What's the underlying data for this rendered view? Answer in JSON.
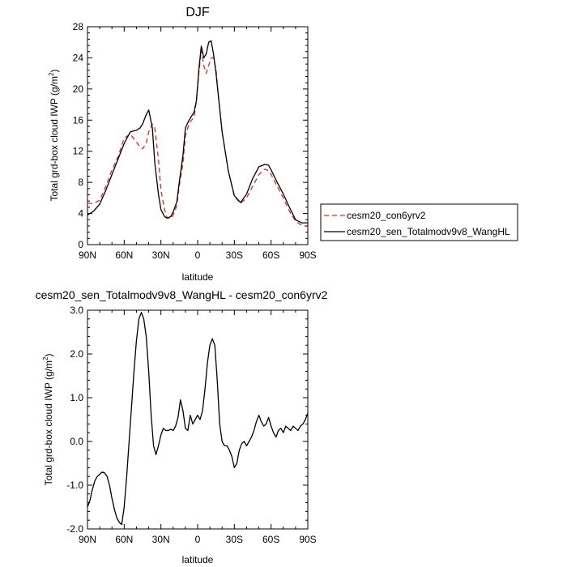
{
  "chart_data": [
    {
      "type": "line",
      "title": "DJF",
      "xlabel": "latitude",
      "ylabel": "Total grd-box cloud IWP (g/m",
      "ylabel_sup": "2",
      "ylabel_close": ")",
      "xlim": [
        90,
        -90
      ],
      "ylim": [
        0,
        28
      ],
      "xticks": [
        90,
        60,
        30,
        0,
        -30,
        -60,
        -90
      ],
      "xtick_labels": [
        "90N",
        "60N",
        "30N",
        "0",
        "30S",
        "60S",
        "90S"
      ],
      "yticks": [
        0,
        4,
        8,
        12,
        16,
        20,
        24,
        28
      ],
      "ytick_labels": [
        "0",
        "4",
        "8",
        "12",
        "16",
        "20",
        "24",
        "28"
      ],
      "legend_position": "right",
      "series": [
        {
          "name": "cesm20_con6yrv2",
          "color": "#e8262a",
          "dash": "dashed",
          "x": [
            90,
            85,
            80,
            75,
            70,
            65,
            60,
            55,
            50,
            47,
            45,
            42,
            40,
            37,
            35,
            32,
            30,
            27,
            25,
            22,
            20,
            17,
            15,
            12,
            10,
            7,
            5,
            3,
            1,
            -1,
            -3,
            -5,
            -7,
            -9,
            -11,
            -13,
            -15,
            -17,
            -20,
            -25,
            -30,
            -35,
            -40,
            -45,
            -50,
            -55,
            -58,
            -60,
            -65,
            -70,
            -75,
            -80,
            -85,
            -90
          ],
          "y": [
            5.3,
            5.3,
            5.7,
            7.5,
            9.6,
            11.3,
            13.7,
            14.2,
            13.2,
            12.5,
            12.3,
            13.0,
            14.5,
            15.5,
            15.0,
            11.0,
            7.0,
            4.5,
            3.5,
            3.3,
            3.8,
            5.0,
            7.5,
            10.5,
            14.0,
            15.5,
            16.0,
            16.3,
            18.5,
            22.0,
            25.0,
            23.0,
            22.0,
            23.0,
            24.0,
            24.0,
            22.5,
            19.0,
            14.5,
            9.5,
            6.2,
            5.3,
            6.0,
            7.5,
            9.0,
            9.7,
            9.5,
            9.0,
            7.5,
            6.0,
            4.3,
            3.0,
            2.5,
            2.3
          ]
        },
        {
          "name": "cesm20_sen_Totalmodv9v8_WangHL",
          "color": "#000000",
          "dash": "solid",
          "x": [
            90,
            85,
            80,
            75,
            70,
            65,
            60,
            55,
            50,
            47,
            45,
            42,
            40,
            37,
            35,
            32,
            30,
            27,
            25,
            22,
            20,
            17,
            15,
            12,
            10,
            7,
            5,
            3,
            1,
            -1,
            -3,
            -5,
            -7,
            -9,
            -11,
            -13,
            -15,
            -17,
            -20,
            -25,
            -30,
            -35,
            -40,
            -45,
            -50,
            -55,
            -58,
            -60,
            -65,
            -70,
            -75,
            -80,
            -85,
            -90
          ],
          "y": [
            3.8,
            4.3,
            5.2,
            7.0,
            9.0,
            11.0,
            13.0,
            14.5,
            14.7,
            15.0,
            15.5,
            16.7,
            17.3,
            15.0,
            10.5,
            6.5,
            4.5,
            3.6,
            3.4,
            3.6,
            4.2,
            5.5,
            8.0,
            11.5,
            15.0,
            16.0,
            16.5,
            17.0,
            18.5,
            22.5,
            25.5,
            24.0,
            24.5,
            26.0,
            26.2,
            24.5,
            22.0,
            19.0,
            14.5,
            9.5,
            6.3,
            5.4,
            6.5,
            8.5,
            10.0,
            10.3,
            10.2,
            9.6,
            8.0,
            6.5,
            4.8,
            3.2,
            2.8,
            2.8
          ]
        }
      ]
    },
    {
      "type": "line",
      "title": "cesm20_sen_Totalmodv9v8_WangHL - cesm20_con6yrv2",
      "xlabel": "latitude",
      "ylabel": "Total grd-box cloud IWP (g/m",
      "ylabel_sup": "2",
      "ylabel_close": ")",
      "xlim": [
        90,
        -90
      ],
      "ylim": [
        -2.0,
        3.0
      ],
      "xticks": [
        90,
        60,
        30,
        0,
        -30,
        -60,
        -90
      ],
      "xtick_labels": [
        "90N",
        "60N",
        "30N",
        "0",
        "30S",
        "60S",
        "90S"
      ],
      "yticks": [
        -2.0,
        -1.0,
        0.0,
        1.0,
        2.0,
        3.0
      ],
      "ytick_labels": [
        "-2.0",
        "-1.0",
        "0.0",
        "1.0",
        "2.0",
        "3.0"
      ],
      "series": [
        {
          "name": "",
          "color": "#000000",
          "dash": "solid",
          "x": [
            90,
            88,
            86,
            84,
            82,
            80,
            78,
            76,
            74,
            72,
            70,
            68,
            66,
            64,
            62,
            60,
            58,
            56,
            54,
            52,
            50,
            48,
            46,
            44,
            42,
            40,
            38,
            36,
            34,
            32,
            30,
            28,
            26,
            24,
            22,
            20,
            18,
            16,
            14,
            12,
            10,
            8,
            6,
            4,
            2,
            0,
            -2,
            -4,
            -6,
            -8,
            -10,
            -12,
            -14,
            -16,
            -18,
            -20,
            -22,
            -24,
            -26,
            -28,
            -30,
            -32,
            -34,
            -36,
            -38,
            -40,
            -42,
            -44,
            -46,
            -48,
            -50,
            -52,
            -54,
            -56,
            -58,
            -60,
            -62,
            -64,
            -66,
            -68,
            -70,
            -72,
            -74,
            -76,
            -78,
            -80,
            -82,
            -84,
            -86,
            -88,
            -90
          ],
          "y": [
            -1.5,
            -1.35,
            -1.1,
            -0.9,
            -0.8,
            -0.75,
            -0.7,
            -0.72,
            -0.8,
            -1.0,
            -1.3,
            -1.55,
            -1.75,
            -1.85,
            -1.9,
            -1.5,
            -0.8,
            0.0,
            0.8,
            1.6,
            2.3,
            2.8,
            2.95,
            2.8,
            2.4,
            1.6,
            0.6,
            -0.1,
            -0.3,
            -0.1,
            0.15,
            0.3,
            0.25,
            0.25,
            0.28,
            0.25,
            0.35,
            0.55,
            0.95,
            0.7,
            0.3,
            0.25,
            0.6,
            0.4,
            0.5,
            0.6,
            0.5,
            0.7,
            1.2,
            1.8,
            2.2,
            2.35,
            2.2,
            1.4,
            0.4,
            0.0,
            -0.1,
            -0.1,
            -0.2,
            -0.35,
            -0.6,
            -0.5,
            -0.2,
            -0.05,
            0.0,
            -0.1,
            0.0,
            0.1,
            0.25,
            0.45,
            0.6,
            0.45,
            0.35,
            0.4,
            0.55,
            0.35,
            0.2,
            0.1,
            0.25,
            0.3,
            0.2,
            0.35,
            0.3,
            0.25,
            0.35,
            0.3,
            0.25,
            0.35,
            0.4,
            0.5,
            0.65
          ]
        }
      ]
    }
  ]
}
